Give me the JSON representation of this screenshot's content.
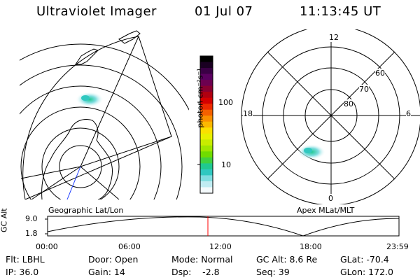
{
  "header": {
    "instrument": "Ultraviolet Imager",
    "date": "01 Jul 07",
    "time": "11:13:45 UT"
  },
  "colorbar": {
    "unit_label": "photon cm⁻²s⁻¹",
    "ticks": [
      "100",
      "10"
    ],
    "colors": [
      "#000000",
      "#1a0022",
      "#3a0045",
      "#5a0060",
      "#6d0050",
      "#8a0030",
      "#b00010",
      "#d40000",
      "#ec2a00",
      "#f46000",
      "#f99000",
      "#fbb800",
      "#fae000",
      "#e8f000",
      "#c8ec00",
      "#a0e600",
      "#70dc00",
      "#40d040",
      "#20c890",
      "#30c8c0",
      "#80dde0",
      "#c0ecf2",
      "#f4fafc"
    ]
  },
  "left_panel": {
    "caption": "Geographic Lat/Lon"
  },
  "right_panel": {
    "caption": "Apex MLat/MLT",
    "mlt_labels": {
      "top": "12",
      "left": "18",
      "right": "6",
      "bottom": "0"
    },
    "lat_labels": [
      "60",
      "70",
      "80"
    ]
  },
  "altitude_plot": {
    "ylabel": "GC Alt",
    "yticks": [
      "9.0",
      "1.8"
    ],
    "xticks": [
      "00:00",
      "06:00",
      "12:00",
      "18:00",
      "23:59"
    ],
    "marker_color": "#ff0000"
  },
  "footer": {
    "row1": [
      "Flt: LBHL",
      "Door: Open",
      "Mode: Normal",
      "GC Alt: 8.6 Re",
      "GLat: -70.4"
    ],
    "row2": [
      "IP: 36.0",
      "Gain: 14",
      "Dsp:    -2.8",
      "Seq: 39",
      "GLon: 172.0"
    ]
  }
}
